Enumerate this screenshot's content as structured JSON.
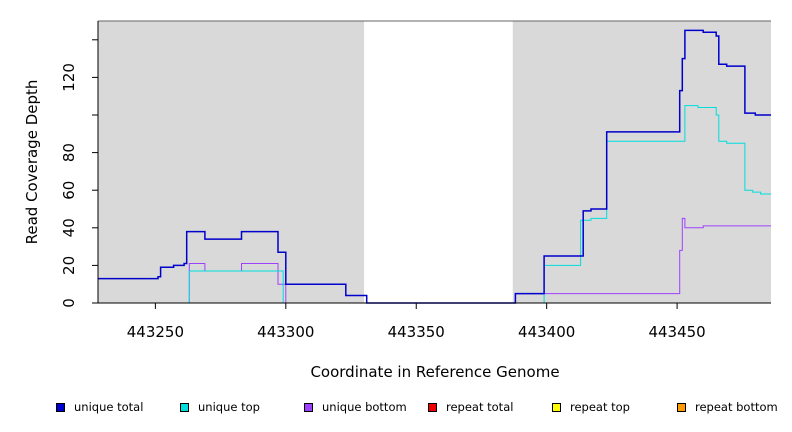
{
  "chart_data": {
    "type": "line",
    "step": true,
    "xlabel": "Coordinate in Reference Genome",
    "ylabel": "Read Coverage Depth",
    "xlim": [
      443228,
      443486
    ],
    "ylim": [
      0,
      150
    ],
    "xticks": [
      443250,
      443300,
      443350,
      443400,
      443450
    ],
    "yticks": [
      0,
      20,
      40,
      60,
      80,
      100,
      120,
      140
    ],
    "ytick_labels": [
      "0",
      "20",
      "40",
      "60",
      "80",
      "",
      "120",
      ""
    ],
    "background": "#d9d9d9",
    "unshaded_regions": [
      [
        443330,
        443387
      ]
    ],
    "legend_position": "bottom",
    "series": [
      {
        "name": "unique total",
        "color": "#0000cc",
        "points": [
          [
            443228,
            13
          ],
          [
            443250,
            13
          ],
          [
            443251,
            14
          ],
          [
            443252,
            19
          ],
          [
            443257,
            20
          ],
          [
            443260,
            20
          ],
          [
            443261,
            21
          ],
          [
            443262,
            38
          ],
          [
            443268,
            38
          ],
          [
            443269,
            34
          ],
          [
            443282,
            34
          ],
          [
            443283,
            38
          ],
          [
            443296,
            38
          ],
          [
            443297,
            27
          ],
          [
            443299,
            27
          ],
          [
            443300,
            10
          ],
          [
            443320,
            10
          ],
          [
            443323,
            4
          ],
          [
            443330,
            4
          ],
          [
            443331,
            0
          ],
          [
            443387,
            0
          ],
          [
            443388,
            5
          ],
          [
            443398,
            5
          ],
          [
            443399,
            25
          ],
          [
            443413,
            25
          ],
          [
            443414,
            49
          ],
          [
            443416,
            49
          ],
          [
            443417,
            50
          ],
          [
            443422,
            50
          ],
          [
            443423,
            91
          ],
          [
            443450,
            91
          ],
          [
            443451,
            113
          ],
          [
            443452,
            130
          ],
          [
            443453,
            145
          ],
          [
            443459,
            145
          ],
          [
            443460,
            144
          ],
          [
            443464,
            144
          ],
          [
            443465,
            142
          ],
          [
            443466,
            127
          ],
          [
            443468,
            127
          ],
          [
            443469,
            126
          ],
          [
            443475,
            126
          ],
          [
            443476,
            101
          ],
          [
            443479,
            101
          ],
          [
            443480,
            100
          ],
          [
            443486,
            100
          ]
        ]
      },
      {
        "name": "unique top",
        "color": "#00dddd",
        "points": [
          [
            443228,
            0
          ],
          [
            443262,
            0
          ],
          [
            443263,
            17
          ],
          [
            443298,
            17
          ],
          [
            443299,
            0
          ],
          [
            443398,
            0
          ],
          [
            443399,
            20
          ],
          [
            443412,
            20
          ],
          [
            443413,
            44
          ],
          [
            443416,
            44
          ],
          [
            443417,
            45
          ],
          [
            443422,
            45
          ],
          [
            443423,
            86
          ],
          [
            443452,
            86
          ],
          [
            443453,
            105
          ],
          [
            443457,
            105
          ],
          [
            443458,
            104
          ],
          [
            443464,
            104
          ],
          [
            443465,
            100
          ],
          [
            443466,
            86
          ],
          [
            443468,
            86
          ],
          [
            443469,
            85
          ],
          [
            443475,
            85
          ],
          [
            443476,
            60
          ],
          [
            443478,
            60
          ],
          [
            443479,
            59
          ],
          [
            443481,
            59
          ],
          [
            443482,
            58
          ],
          [
            443486,
            58
          ]
        ]
      },
      {
        "name": "unique bottom",
        "color": "#a040ff",
        "points": [
          [
            443228,
            0
          ],
          [
            443262,
            0
          ],
          [
            443263,
            21
          ],
          [
            443268,
            21
          ],
          [
            443269,
            17
          ],
          [
            443282,
            17
          ],
          [
            443283,
            21
          ],
          [
            443296,
            21
          ],
          [
            443297,
            10
          ],
          [
            443299,
            10
          ],
          [
            443300,
            0
          ],
          [
            443387,
            0
          ],
          [
            443388,
            5
          ],
          [
            443450,
            5
          ],
          [
            443451,
            28
          ],
          [
            443452,
            45
          ],
          [
            443453,
            40
          ],
          [
            443459,
            40
          ],
          [
            443460,
            41
          ],
          [
            443486,
            41
          ]
        ]
      },
      {
        "name": "repeat total",
        "color": "#ee0000",
        "points": [
          [
            443228,
            0
          ],
          [
            443486,
            0
          ]
        ]
      },
      {
        "name": "repeat top",
        "color": "#ffff00",
        "points": [
          [
            443228,
            0
          ],
          [
            443486,
            0
          ]
        ]
      },
      {
        "name": "repeat bottom",
        "color": "#ff9900",
        "points": [
          [
            443228,
            0
          ],
          [
            443486,
            0
          ]
        ]
      }
    ]
  }
}
